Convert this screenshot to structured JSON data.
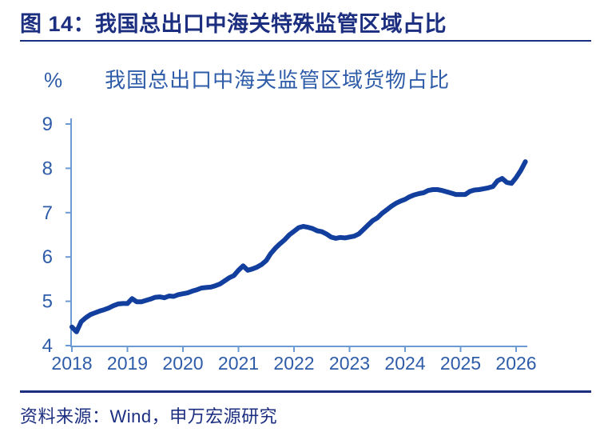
{
  "page": {
    "title": "图 14：我国总出口中海关特殊监管区域占比",
    "source_note": "资料来源：Wind，申万宏源研究"
  },
  "chart_data": {
    "type": "line",
    "title": "我国总出口中海关监管区域货物占比",
    "unit_label": "%",
    "xlabel": "",
    "ylabel": "%",
    "x_tick_labels": [
      "2018",
      "2019",
      "2020",
      "2021",
      "2022",
      "2023",
      "2024",
      "2025",
      "2026"
    ],
    "y_ticks": [
      9,
      8,
      7,
      6,
      5,
      4
    ],
    "ylim": [
      4,
      9
    ],
    "grid": false,
    "legend_position": "top",
    "frequency": "monthly",
    "start": "2018-01",
    "end": "2026-03",
    "series": [
      {
        "name": "我国总出口中海关监管区域货物占比",
        "values": [
          4.42,
          4.31,
          4.54,
          4.63,
          4.7,
          4.74,
          4.78,
          4.81,
          4.85,
          4.9,
          4.94,
          4.95,
          4.95,
          5.06,
          4.99,
          4.99,
          5.02,
          5.05,
          5.09,
          5.1,
          5.08,
          5.12,
          5.11,
          5.15,
          5.17,
          5.19,
          5.23,
          5.26,
          5.3,
          5.31,
          5.32,
          5.35,
          5.39,
          5.46,
          5.53,
          5.58,
          5.7,
          5.8,
          5.7,
          5.73,
          5.77,
          5.83,
          5.92,
          6.08,
          6.2,
          6.3,
          6.39,
          6.5,
          6.58,
          6.66,
          6.69,
          6.67,
          6.64,
          6.59,
          6.57,
          6.52,
          6.45,
          6.42,
          6.44,
          6.43,
          6.45,
          6.47,
          6.52,
          6.62,
          6.72,
          6.82,
          6.88,
          6.98,
          7.06,
          7.14,
          7.21,
          7.26,
          7.3,
          7.36,
          7.4,
          7.43,
          7.45,
          7.5,
          7.52,
          7.52,
          7.5,
          7.47,
          7.44,
          7.41,
          7.41,
          7.41,
          7.48,
          7.51,
          7.52,
          7.54,
          7.56,
          7.59,
          7.72,
          7.77,
          7.68,
          7.66,
          7.79,
          7.95,
          8.15
        ]
      }
    ]
  },
  "theme": {
    "navy": "#1c2e80",
    "axis_blue": "#6b9bd2",
    "tick_label_blue": "#2e5ca8",
    "line_blue": "#123f9d",
    "background": "#ffffff"
  }
}
